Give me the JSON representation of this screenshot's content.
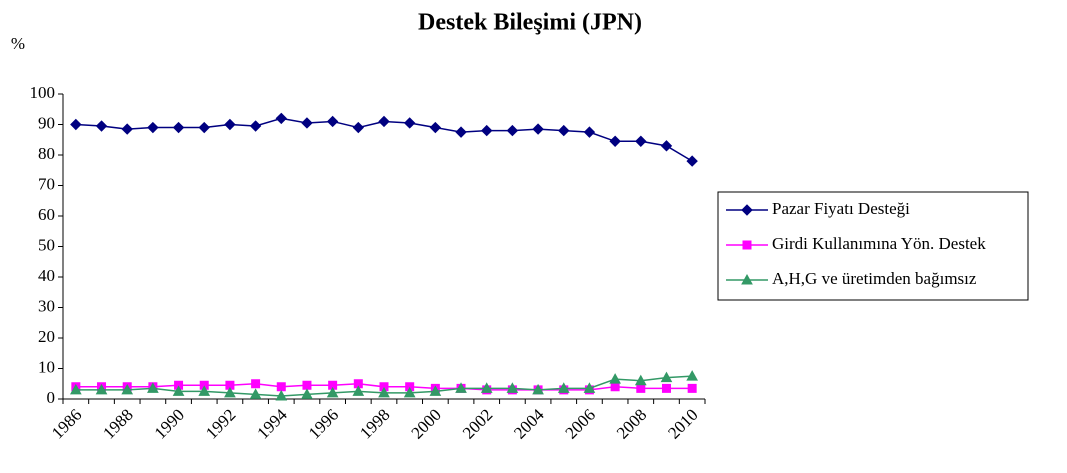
{
  "chart_data": {
    "type": "line",
    "title": "Destek Bileşimi (JPN)",
    "y_label": "%",
    "categories": [
      "1986",
      null,
      "1988",
      null,
      "1990",
      null,
      "1992",
      null,
      "1994",
      null,
      "1996",
      null,
      "1998",
      null,
      "2000",
      null,
      "2002",
      null,
      "2004",
      null,
      "2006",
      null,
      "2008",
      null,
      "2010"
    ],
    "series": [
      {
        "name": "Pazar Fiyatı Desteği",
        "color": "#000080",
        "marker": "diamond",
        "values": [
          90,
          89.5,
          88.5,
          89,
          89,
          89,
          90,
          89.5,
          92,
          90.5,
          91,
          89,
          91,
          90.5,
          89,
          87.5,
          88,
          88,
          88.5,
          88,
          87.5,
          84.5,
          84.5,
          83,
          78
        ]
      },
      {
        "name": "Girdi Kullanımına Yön. Destek",
        "color": "#FF00FF",
        "marker": "square",
        "values": [
          4,
          4,
          4,
          4,
          4.5,
          4.5,
          4.5,
          5,
          4,
          4.5,
          4.5,
          5,
          4,
          4,
          3.5,
          3.5,
          3,
          3,
          3,
          3,
          3,
          4,
          3.5,
          3.5,
          3.5
        ]
      },
      {
        "name": "A,H,G ve üretimden bağımsız",
        "color": "#339966",
        "marker": "triangle",
        "values": [
          3,
          3,
          3,
          3.5,
          2.5,
          2.5,
          2,
          1.5,
          1,
          1.5,
          2,
          2.5,
          2,
          2,
          2.5,
          3.5,
          3.5,
          3.5,
          3,
          3.5,
          3.5,
          6.5,
          6,
          7,
          7.5
        ]
      }
    ],
    "ylim": [
      0,
      100
    ],
    "yticks": [
      0,
      10,
      20,
      30,
      40,
      50,
      60,
      70,
      80,
      90,
      100
    ],
    "grid": false,
    "legend": "right"
  }
}
